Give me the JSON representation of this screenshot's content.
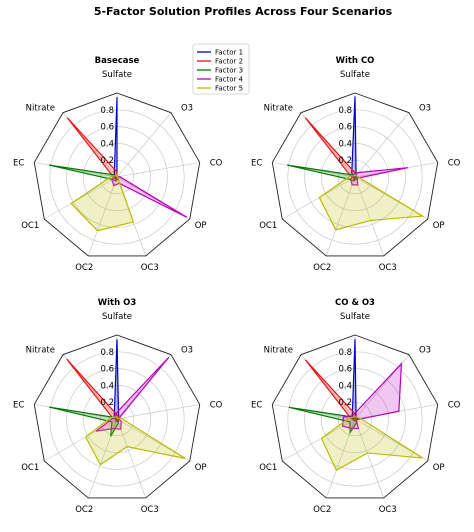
{
  "title": "5-Factor Solution Profiles Across Four Scenarios",
  "chart_data": {
    "type": "radar",
    "axes": [
      "Sulfate",
      "O3",
      "CO",
      "OP",
      "OC3",
      "OC2",
      "OC1",
      "EC",
      "Nitrate"
    ],
    "radial_ticks": [
      0.2,
      0.4,
      0.6,
      0.8
    ],
    "rlim": [
      0,
      1.0
    ],
    "grid": true,
    "legend_position": "upper-center",
    "legend": [
      {
        "name": "Factor 1",
        "color": "#0000cc"
      },
      {
        "name": "Factor 2",
        "color": "#ee1111"
      },
      {
        "name": "Factor 3",
        "color": "#007700"
      },
      {
        "name": "Factor 4",
        "color": "#bb00bb"
      },
      {
        "name": "Factor 5",
        "color": "#bbbb00"
      }
    ],
    "charts": [
      {
        "title": "Basecase",
        "series": [
          {
            "name": "Factor 1",
            "values": [
              0.95,
              0.0,
              0.02,
              0.01,
              0.03,
              0.02,
              0.03,
              0.02,
              0.05
            ]
          },
          {
            "name": "Factor 2",
            "values": [
              0.06,
              0.0,
              0.01,
              0.02,
              0.02,
              0.03,
              0.01,
              0.05,
              0.92
            ]
          },
          {
            "name": "Factor 3",
            "values": [
              0.01,
              0.0,
              0.01,
              0.02,
              0.03,
              0.05,
              0.06,
              0.82,
              0.03
            ]
          },
          {
            "name": "Factor 4",
            "values": [
              0.03,
              0.0,
              0.03,
              0.96,
              0.08,
              0.11,
              0.07,
              0.04,
              0.02
            ]
          },
          {
            "name": "Factor 5",
            "values": [
              0.03,
              0.0,
              0.02,
              0.01,
              0.57,
              0.68,
              0.63,
              0.06,
              0.02
            ]
          }
        ]
      },
      {
        "title": "With CO",
        "series": [
          {
            "name": "Factor 1",
            "values": [
              0.96,
              0.02,
              0.03,
              0.01,
              0.02,
              0.02,
              0.02,
              0.02,
              0.06
            ]
          },
          {
            "name": "Factor 2",
            "values": [
              0.05,
              0.01,
              0.02,
              0.02,
              0.02,
              0.03,
              0.01,
              0.05,
              0.92
            ]
          },
          {
            "name": "Factor 3",
            "values": [
              0.01,
              0.01,
              0.02,
              0.01,
              0.03,
              0.05,
              0.06,
              0.82,
              0.03
            ]
          },
          {
            "name": "Factor 4",
            "values": [
              0.04,
              0.07,
              0.64,
              0.03,
              0.1,
              0.1,
              0.06,
              0.03,
              0.03
            ]
          },
          {
            "name": "Factor 5",
            "values": [
              0.03,
              0.02,
              0.03,
              0.93,
              0.55,
              0.67,
              0.49,
              0.06,
              0.02
            ]
          }
        ]
      },
      {
        "title": "With O3",
        "series": [
          {
            "name": "Factor 1",
            "values": [
              0.95,
              0.03,
              0.02,
              0.01,
              0.03,
              0.03,
              0.02,
              0.02,
              0.05
            ]
          },
          {
            "name": "Factor 2",
            "values": [
              0.05,
              0.03,
              0.01,
              0.02,
              0.02,
              0.03,
              0.01,
              0.05,
              0.93
            ]
          },
          {
            "name": "Factor 3",
            "values": [
              0.01,
              0.02,
              0.02,
              0.02,
              0.05,
              0.22,
              0.07,
              0.82,
              0.02
            ]
          },
          {
            "name": "Factor 4",
            "values": [
              0.08,
              0.96,
              0.02,
              0.06,
              0.13,
              0.12,
              0.29,
              0.05,
              0.04
            ]
          },
          {
            "name": "Factor 5",
            "values": [
              0.03,
              0.01,
              0.05,
              0.94,
              0.35,
              0.58,
              0.43,
              0.08,
              0.03
            ]
          }
        ]
      },
      {
        "title": "CO & O3",
        "series": [
          {
            "name": "Factor 1",
            "values": [
              0.95,
              0.02,
              0.02,
              0.01,
              0.02,
              0.02,
              0.02,
              0.02,
              0.05
            ]
          },
          {
            "name": "Factor 2",
            "values": [
              0.06,
              0.03,
              0.04,
              0.02,
              0.02,
              0.02,
              0.02,
              0.05,
              0.92
            ]
          },
          {
            "name": "Factor 3",
            "values": [
              0.01,
              0.01,
              0.02,
              0.01,
              0.05,
              0.17,
              0.07,
              0.8,
              0.03
            ]
          },
          {
            "name": "Factor 4",
            "values": [
              0.07,
              0.86,
              0.53,
              0.02,
              0.12,
              0.12,
              0.17,
              0.14,
              0.05
            ]
          },
          {
            "name": "Factor 5",
            "values": [
              0.03,
              0.03,
              0.06,
              0.93,
              0.43,
              0.65,
              0.46,
              0.07,
              0.03
            ]
          }
        ]
      }
    ]
  }
}
